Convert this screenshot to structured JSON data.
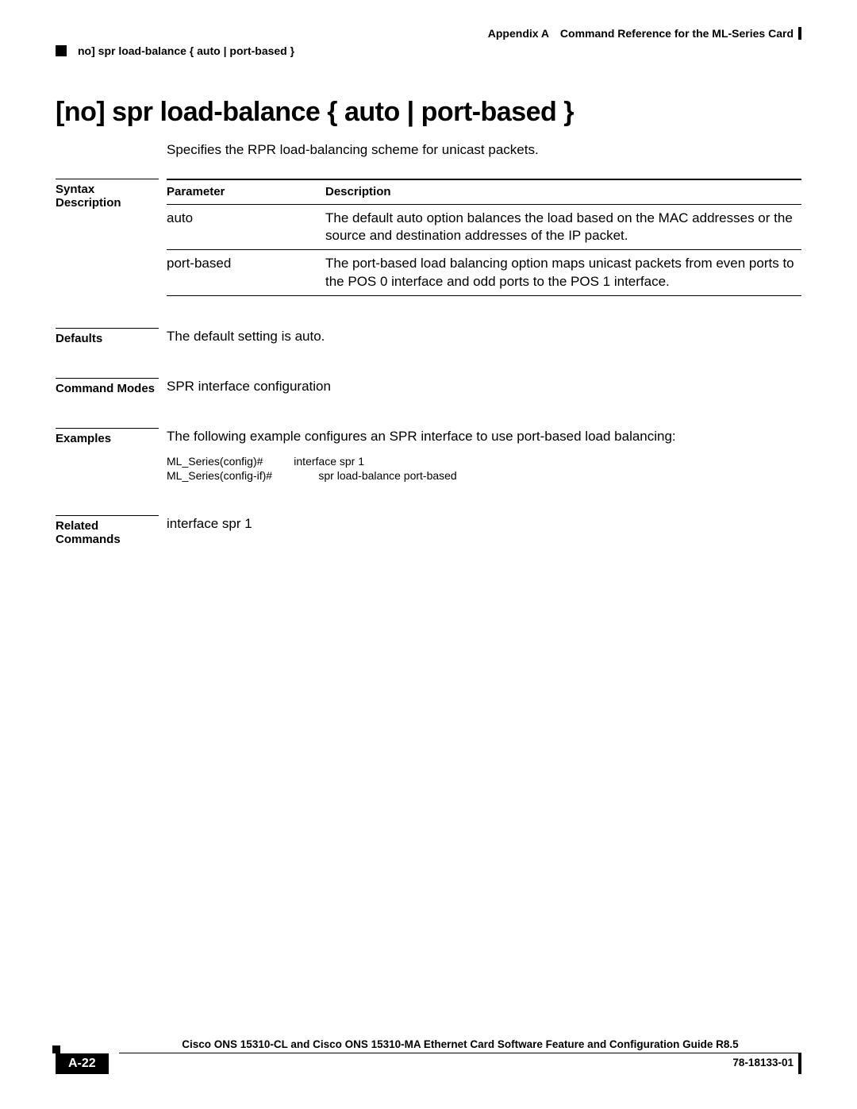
{
  "header": {
    "appendix": "Appendix A",
    "chapter": "Command Reference for the ML-Series Card",
    "running_head": "no] spr load-balance { auto | port-based }"
  },
  "title": "[no] spr load-balance { auto | port-based }",
  "intro": "Specifies the RPR load-balancing scheme for unicast packets.",
  "syntax": {
    "label": "Syntax Description",
    "columns": [
      "Parameter",
      "Description"
    ],
    "rows": [
      {
        "param": "auto",
        "desc": "The default auto option balances the load based on the MAC addresses or the source and destination addresses of the IP packet."
      },
      {
        "param": "port-based",
        "desc": "The port-based load balancing option maps unicast packets from even ports to the POS 0 interface and odd ports to the POS 1 interface."
      }
    ]
  },
  "defaults": {
    "label": "Defaults",
    "text": "The default setting is auto."
  },
  "modes": {
    "label": "Command Modes",
    "text": "SPR interface configuration"
  },
  "examples": {
    "label": "Examples",
    "text": "The following example configures an SPR interface to use port-based load balancing:",
    "code": "ML_Series(config)#          interface spr 1\nML_Series(config-if)#               spr load-balance port-based"
  },
  "related": {
    "label": "Related Commands",
    "text": "interface spr 1"
  },
  "footer": {
    "book": "Cisco ONS 15310-CL and Cisco ONS 15310-MA Ethernet Card Software Feature and Configuration Guide R8.5",
    "page": "A-22",
    "docid": "78-18133-01"
  }
}
